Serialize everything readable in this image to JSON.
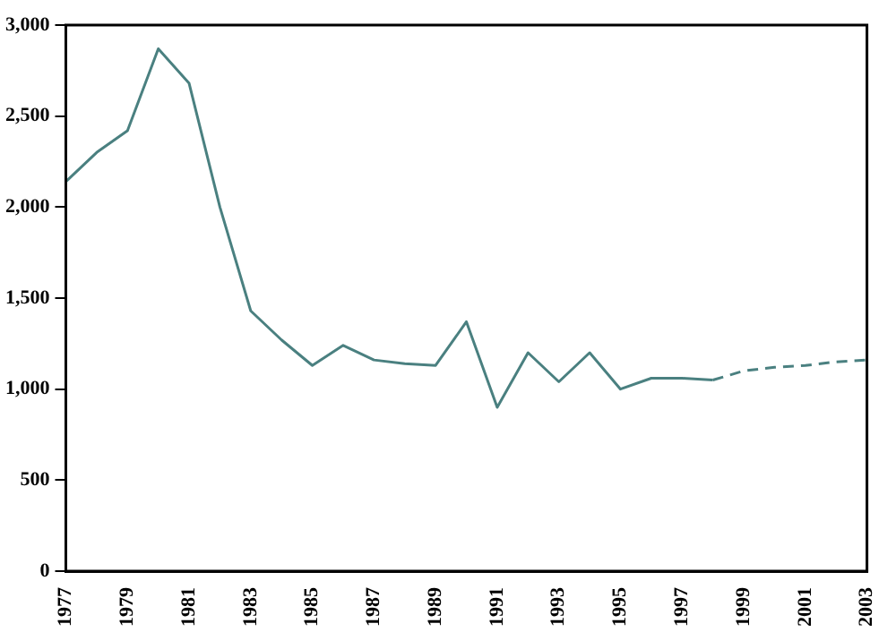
{
  "chart_data": {
    "type": "line",
    "categories": [
      "1977",
      null,
      "1979",
      null,
      "1981",
      null,
      "1983",
      null,
      "1985",
      null,
      "1987",
      null,
      "1989",
      null,
      "1991",
      null,
      "1993",
      null,
      "1995",
      null,
      "1997",
      null,
      "1999",
      null,
      "2001",
      null,
      "2003"
    ],
    "series": [
      {
        "color": "#4a8080",
        "line_style": "solid",
        "values": [
          2140,
          2300,
          2420,
          2870,
          2680,
          2000,
          1430,
          1270,
          1130,
          1240,
          1160,
          1140,
          1130,
          1370,
          900,
          1200,
          1040,
          1200,
          1000,
          1060,
          1060,
          1050,
          null,
          null,
          null,
          null,
          null
        ]
      },
      {
        "color": "#4a8080",
        "line_style": "dashed",
        "values": [
          null,
          null,
          null,
          null,
          null,
          null,
          null,
          null,
          null,
          null,
          null,
          null,
          null,
          null,
          null,
          null,
          null,
          null,
          null,
          null,
          null,
          1050,
          1100,
          1120,
          1130,
          1150,
          1160
        ]
      }
    ],
    "ylim": [
      0,
      3000
    ],
    "yticks": [
      {
        "value": 0,
        "label": "0"
      },
      {
        "value": 500,
        "label": "500"
      },
      {
        "value": 1000,
        "label": "1,000"
      },
      {
        "value": 1500,
        "label": "1,500"
      },
      {
        "value": 2000,
        "label": "2,000"
      },
      {
        "value": 2500,
        "label": "2,500"
      },
      {
        "value": 3000,
        "label": "3,000"
      }
    ],
    "grid": false,
    "legend": false,
    "marker": "none"
  }
}
